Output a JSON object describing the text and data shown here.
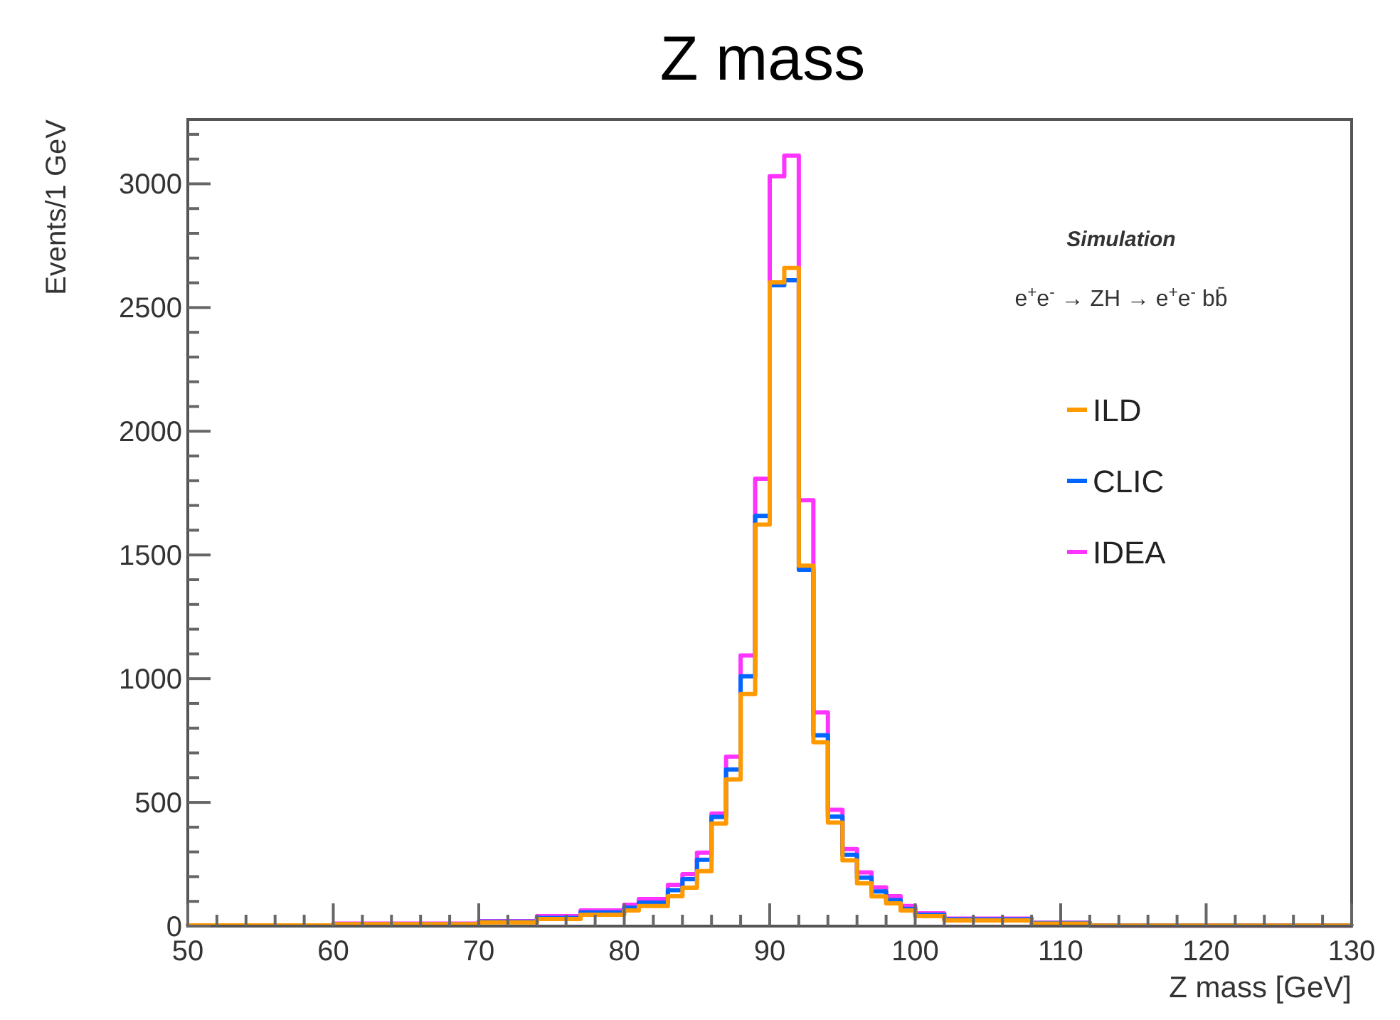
{
  "chart_data": {
    "type": "histogram",
    "title": "Z mass",
    "xlabel": "Z mass [GeV]",
    "ylabel": "Events/1 GeV",
    "annotations": [
      "Simulation",
      "e$^{+}$e$^{-}$ → ZH → e$^{+}$e$^{-}$ bb̄"
    ],
    "bins": [
      50,
      51,
      52,
      53,
      54,
      55,
      56,
      57,
      58,
      59,
      60,
      61,
      62,
      63,
      64,
      65,
      66,
      67,
      68,
      69,
      70,
      71,
      72,
      73,
      74,
      75,
      76,
      77,
      78,
      79,
      80,
      81,
      82,
      83,
      84,
      85,
      86,
      87,
      88,
      89,
      90,
      91,
      92,
      93,
      94,
      95,
      96,
      97,
      98,
      99,
      100,
      101,
      102,
      103,
      104,
      105,
      106,
      107,
      108,
      109,
      110,
      111,
      112,
      113,
      114,
      115,
      116,
      117,
      118,
      119,
      120,
      121,
      122,
      123,
      124,
      125,
      126,
      127,
      128,
      129,
      130
    ],
    "series": [
      {
        "name": "ILD",
        "color": "#ff9900",
        "values": [
          3,
          3,
          3,
          3,
          3,
          3,
          3,
          3,
          3,
          3,
          8,
          8,
          8,
          8,
          8,
          8,
          8,
          8,
          8,
          8,
          15,
          15,
          15,
          15,
          29,
          29,
          29,
          46,
          46,
          46,
          63,
          81,
          81,
          121,
          155,
          222,
          415,
          593,
          938,
          1623,
          2602,
          2660,
          1457,
          743,
          418,
          266,
          173,
          120,
          92,
          63,
          40,
          40,
          23,
          23,
          23,
          23,
          23,
          23,
          10,
          10,
          10,
          10,
          2,
          2,
          2,
          2,
          2,
          2,
          2,
          2,
          2,
          2,
          2,
          2,
          2,
          2,
          2,
          2,
          2,
          2
        ]
      },
      {
        "name": "CLIC",
        "color": "#0066ff",
        "values": [
          3,
          3,
          3,
          3,
          3,
          3,
          3,
          3,
          3,
          3,
          8,
          8,
          8,
          8,
          8,
          8,
          8,
          8,
          8,
          8,
          18,
          18,
          18,
          18,
          33,
          33,
          33,
          55,
          55,
          55,
          75,
          95,
          95,
          145,
          190,
          268,
          441,
          633,
          1010,
          1658,
          2590,
          2610,
          1440,
          771,
          443,
          288,
          196,
          140,
          105,
          70,
          46,
          46,
          27,
          27,
          27,
          27,
          27,
          27,
          12,
          12,
          12,
          12,
          2,
          2,
          2,
          2,
          2,
          2,
          2,
          2,
          2,
          2,
          2,
          2,
          2,
          2,
          2,
          2,
          2,
          2
        ]
      },
      {
        "name": "IDEA",
        "color": "#ff33ff",
        "values": [
          3,
          3,
          3,
          3,
          3,
          3,
          3,
          3,
          3,
          3,
          10,
          10,
          10,
          10,
          10,
          10,
          10,
          10,
          10,
          10,
          20,
          20,
          20,
          20,
          40,
          40,
          40,
          63,
          63,
          63,
          86,
          109,
          109,
          167,
          210,
          297,
          455,
          685,
          1094,
          1808,
          3031,
          3114,
          1721,
          864,
          470,
          311,
          217,
          157,
          121,
          81,
          52,
          52,
          30,
          30,
          30,
          30,
          30,
          30,
          14,
          14,
          14,
          14,
          2,
          2,
          2,
          2,
          2,
          2,
          2,
          2,
          2,
          2,
          2,
          2,
          2,
          2,
          2,
          2,
          2,
          2
        ]
      }
    ],
    "xlim": [
      50,
      130
    ],
    "xticks": [
      50,
      {
        "value": 52,
        "label": null
      },
      {
        "value": 54,
        "label": null
      },
      {
        "value": 56,
        "label": null
      },
      {
        "value": 58,
        "label": null
      },
      60,
      {
        "value": 62,
        "label": null
      },
      {
        "value": 64,
        "label": null
      },
      {
        "value": 66,
        "label": null
      },
      {
        "value": 68,
        "label": null
      },
      70,
      {
        "value": 72,
        "label": null
      },
      {
        "value": 74,
        "label": null
      },
      {
        "value": 76,
        "label": null
      },
      {
        "value": 78,
        "label": null
      },
      80,
      {
        "value": 82,
        "label": null
      },
      {
        "value": 84,
        "label": null
      },
      {
        "value": 86,
        "label": null
      },
      {
        "value": 88,
        "label": null
      },
      90,
      {
        "value": 92,
        "label": null
      },
      {
        "value": 94,
        "label": null
      },
      {
        "value": 96,
        "label": null
      },
      {
        "value": 98,
        "label": null
      },
      100,
      {
        "value": 102,
        "label": null
      },
      {
        "value": 104,
        "label": null
      },
      {
        "value": 106,
        "label": null
      },
      {
        "value": 108,
        "label": null
      },
      110,
      {
        "value": 112,
        "label": null
      },
      {
        "value": 114,
        "label": null
      },
      {
        "value": 116,
        "label": null
      },
      {
        "value": 118,
        "label": null
      },
      120,
      {
        "value": 122,
        "label": null
      },
      {
        "value": 124,
        "label": null
      },
      {
        "value": 126,
        "label": null
      },
      {
        "value": 128,
        "label": null
      },
      130
    ],
    "ylim": [
      0,
      3260
    ],
    "yticks": [
      0,
      {
        "value": 100,
        "label": null
      },
      {
        "value": 200,
        "label": null
      },
      {
        "value": 300,
        "label": null
      },
      {
        "value": 400,
        "label": null
      },
      500,
      {
        "value": 600,
        "label": null
      },
      {
        "value": 700,
        "label": null
      },
      {
        "value": 800,
        "label": null
      },
      {
        "value": 900,
        "label": null
      },
      1000,
      {
        "value": 1100,
        "label": null
      },
      {
        "value": 1200,
        "label": null
      },
      {
        "value": 1300,
        "label": null
      },
      {
        "value": 1400,
        "label": null
      },
      1500,
      {
        "value": 1600,
        "label": null
      },
      {
        "value": 1700,
        "label": null
      },
      {
        "value": 1800,
        "label": null
      },
      {
        "value": 1900,
        "label": null
      },
      2000,
      {
        "value": 2100,
        "label": null
      },
      {
        "value": 2200,
        "label": null
      },
      {
        "value": 2300,
        "label": null
      },
      {
        "value": 2400,
        "label": null
      },
      2500,
      {
        "value": 2600,
        "label": null
      },
      {
        "value": 2700,
        "label": null
      },
      {
        "value": 2800,
        "label": null
      },
      {
        "value": 2900,
        "label": null
      },
      3000,
      {
        "value": 3100,
        "label": null
      },
      {
        "value": 3200,
        "label": null
      }
    ],
    "legend": "right",
    "grid": false
  }
}
